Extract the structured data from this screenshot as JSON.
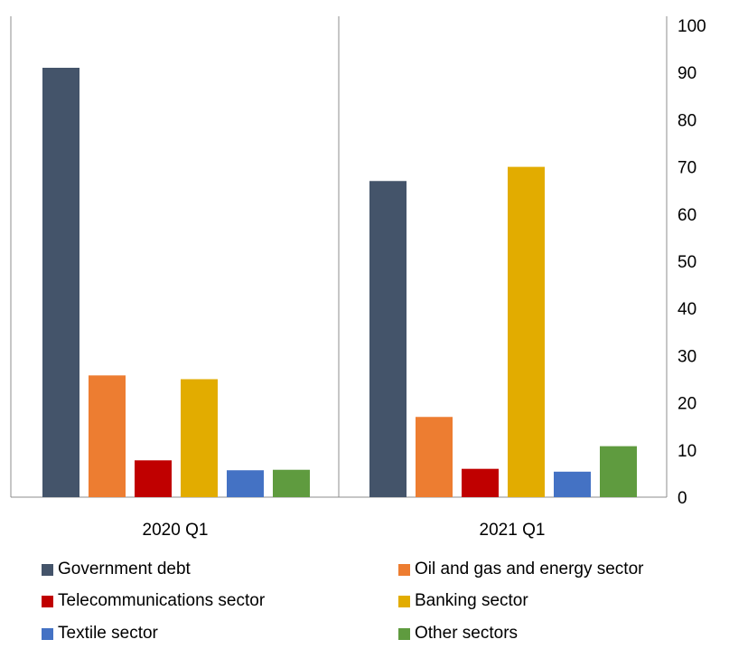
{
  "chart_data": {
    "type": "bar",
    "categories": [
      "2020 Q1",
      "2021 Q1"
    ],
    "series": [
      {
        "name": "Government debt",
        "color": "#44546A",
        "values": [
          91,
          67
        ]
      },
      {
        "name": "Oil and gas and energy sector",
        "color": "#ED7D31",
        "values": [
          25.8,
          17
        ]
      },
      {
        "name": "Telecommunications sector",
        "color": "#C00000",
        "values": [
          7.8,
          6
        ]
      },
      {
        "name": "Banking sector",
        "color": "#E2AC00",
        "values": [
          25,
          70
        ]
      },
      {
        "name": "Textile sector",
        "color": "#4472C4",
        "values": [
          5.7,
          5.4
        ]
      },
      {
        "name": "Other sectors",
        "color": "#5F9B3F",
        "values": [
          5.8,
          10.8
        ]
      }
    ],
    "yaxis_position": "right",
    "ylim": [
      0,
      100
    ],
    "yticks": [
      "0",
      "10",
      "20",
      "30",
      "40",
      "50",
      "60",
      "70",
      "80",
      "90",
      "100"
    ],
    "grid": false,
    "legend_position": "bottom"
  }
}
